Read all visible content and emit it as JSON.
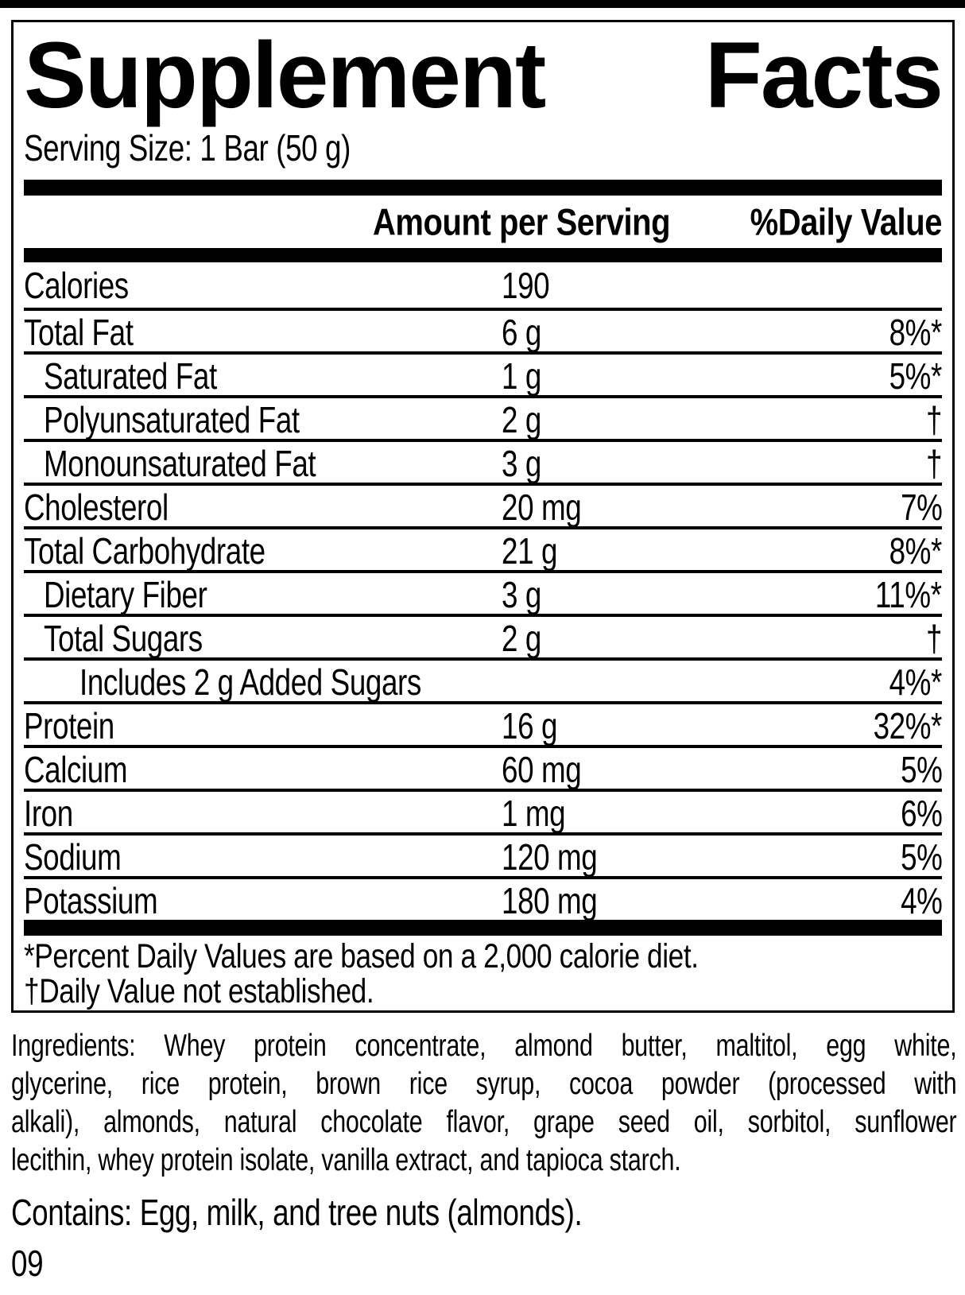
{
  "colors": {
    "ink": "#000000",
    "background": "#ffffff"
  },
  "label": {
    "title": {
      "left": "Supplement",
      "right": "Facts"
    },
    "serving_size": "Serving Size: 1 Bar (50 g)",
    "columns": {
      "amount": "Amount per Serving",
      "daily_value": "%Daily Value"
    },
    "rows": [
      {
        "name": "Calories",
        "amount": "190",
        "dv": "",
        "indent": 0
      },
      {
        "name": "Total Fat",
        "amount": "6 g",
        "dv": "8%*",
        "indent": 0
      },
      {
        "name": "Saturated Fat",
        "amount": "1 g",
        "dv": "5%*",
        "indent": 1
      },
      {
        "name": "Polyunsaturated Fat",
        "amount": "2 g",
        "dv": "†",
        "indent": 1
      },
      {
        "name": "Monounsaturated Fat",
        "amount": "3 g",
        "dv": "†",
        "indent": 1
      },
      {
        "name": "Cholesterol",
        "amount": "20 mg",
        "dv": "7%",
        "indent": 0
      },
      {
        "name": "Total Carbohydrate",
        "amount": "21 g",
        "dv": "8%*",
        "indent": 0
      },
      {
        "name": "Dietary Fiber",
        "amount": "3 g",
        "dv": "11%*",
        "indent": 1
      },
      {
        "name": "Total Sugars",
        "amount": "2 g",
        "dv": "†",
        "indent": 1
      },
      {
        "name": "Includes 2 g Added Sugars",
        "amount": "",
        "dv": "4%*",
        "indent": 2
      },
      {
        "name": "Protein",
        "amount": "16 g",
        "dv": "32%*",
        "indent": 0
      },
      {
        "name": "Calcium",
        "amount": "60 mg",
        "dv": "5%",
        "indent": 0
      },
      {
        "name": "Iron",
        "amount": "1 mg",
        "dv": "6%",
        "indent": 0
      },
      {
        "name": "Sodium",
        "amount": "120 mg",
        "dv": "5%",
        "indent": 0
      },
      {
        "name": "Potassium",
        "amount": "180 mg",
        "dv": "4%",
        "indent": 0
      }
    ],
    "footnotes": [
      "*Percent Daily Values are based on a 2,000 calorie diet.",
      "†Daily Value not established."
    ]
  },
  "ingredients": {
    "full_text": "Ingredients: Whey protein concentrate, almond butter, maltitol, egg white, glycerine, rice protein, brown rice syrup, cocoa powder (processed with alkali), almonds, natural chocolate flavor, grape seed oil, sorbitol, sunflower lecithin, whey protein isolate, vanilla extract, and tapioca starch.",
    "lines": [
      "Ingredients: Whey protein concentrate, almond butter, maltitol, egg white,",
      "glycerine, rice protein, brown rice syrup, cocoa powder (processed with",
      "alkali), almonds, natural chocolate flavor, grape seed oil, sorbitol, sunflower",
      "lecithin, whey protein isolate, vanilla extract, and tapioca starch."
    ]
  },
  "contains": "Contains: Egg, milk, and tree nuts (almonds).",
  "code": "09"
}
